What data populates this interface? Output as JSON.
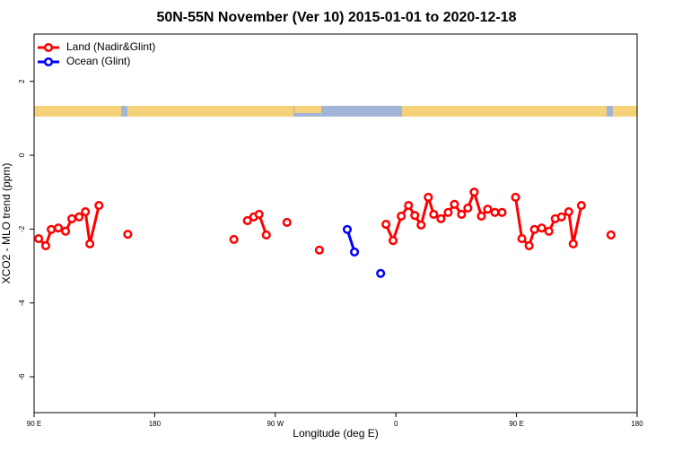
{
  "chart_data": {
    "type": "line",
    "title": "50N-55N November (Ver 10)   2015-01-01 to 2020-12-18",
    "x_label": "Longitude (deg E)",
    "y_label": "XCO2 - MLO trend (ppm)",
    "xlim": [
      90,
      540
    ],
    "ylim": [
      -6.97,
      3.28
    ],
    "xticks": [
      {
        "value": 90,
        "label": "90 E"
      },
      180,
      {
        "value": 270,
        "label": "90 W"
      },
      {
        "value": 360,
        "label": "0"
      },
      {
        "value": 450,
        "label": "90 E"
      },
      {
        "value": 540,
        "label": "180"
      }
    ],
    "yticks": [
      -6,
      -4,
      -2,
      0,
      2
    ],
    "legend": "top-left",
    "series": [
      {
        "name": "Land (Nadir&Glint)",
        "color": "#ff0000",
        "x": [
          93.4,
          98.7,
          102.8,
          108.1,
          113.5,
          118.2,
          123.6,
          128.3,
          131.6,
          138.4,
          null,
          159.9,
          null,
          239.1,
          null,
          249.2,
          253.9,
          257.9,
          263.3,
          null,
          278.7,
          null,
          302.9,
          null,
          352.6,
          357.9,
          364.0,
          369.4,
          374.1,
          378.8,
          384.2,
          388.2,
          393.6,
          399.0,
          403.7,
          409.0,
          413.7,
          418.4,
          423.8,
          428.5,
          433.9,
          439.2,
          null,
          449.3,
          454.0,
          459.4,
          463.4,
          468.8,
          474.2,
          478.9,
          483.6,
          489.0,
          492.3,
          498.4,
          null,
          520.5
        ],
        "values": [
          -2.26,
          -2.45,
          -2.01,
          -1.97,
          -2.06,
          -1.72,
          -1.67,
          -1.53,
          -2.4,
          -1.36,
          null,
          -2.14,
          null,
          -2.28,
          null,
          -1.77,
          -1.67,
          -1.6,
          -2.16,
          null,
          -1.82,
          null,
          -2.57,
          null,
          -1.87,
          -2.31,
          -1.65,
          -1.36,
          -1.63,
          -1.89,
          -1.14,
          -1.6,
          -1.72,
          -1.55,
          -1.33,
          -1.6,
          -1.43,
          -1.0,
          -1.65,
          -1.46,
          -1.55,
          -1.55,
          null,
          -1.14,
          -2.26,
          -2.45,
          -2.01,
          -1.97,
          -2.06,
          -1.72,
          -1.67,
          -1.53,
          -2.4,
          -1.36,
          null,
          -2.16
        ]
      },
      {
        "name": "Ocean (Glint)",
        "color": "#0000ff",
        "x": [
          323.7,
          329.1,
          null,
          348.6
        ],
        "values": [
          -2.01,
          -2.62,
          null,
          -3.2
        ]
      }
    ]
  }
}
